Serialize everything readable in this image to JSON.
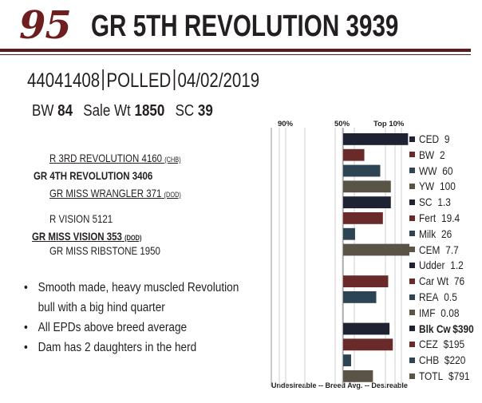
{
  "header": {
    "lot_number": "95",
    "bull_name": "GR  5TH REVOLUTION 3939"
  },
  "id_line": {
    "reg_number": "44041408",
    "polled": "POLLED",
    "birth_date": "04/02/2019"
  },
  "stats": {
    "bw_label": "BW",
    "bw_value": "84",
    "sale_wt_label": "Sale Wt",
    "sale_wt_value": "1850",
    "sc_label": "SC",
    "sc_value": "39"
  },
  "pedigree": {
    "sire": "GR 4TH REVOLUTION 3406",
    "sire_sire": "R 3RD REVOLUTION 4160",
    "sire_sire_tag": "(CHB)",
    "sire_dam": "GR MISS WRANGLER 371",
    "sire_dam_tag": "(DOD)",
    "dam": "GR MISS VISION 353",
    "dam_tag": "(DOD)",
    "dam_sire": "R VISION 5121",
    "dam_dam": "GR MISS RIBSTONE 1950"
  },
  "bullets": [
    "Smooth made, heavy muscled Revolution",
    "bull with a big hind quarter",
    "All EPDs above breed average",
    "Dam has 2 daughters in the herd"
  ],
  "chart_data": {
    "type": "bar",
    "orientation": "horizontal",
    "column_labels": [
      "90%",
      "50%",
      "Top 10%"
    ],
    "xlabel": "Undesireable -- Breed Avg. -- Desireable",
    "xlim": [
      0,
      100
    ],
    "grid": true,
    "categories": [
      "CED",
      "BW",
      "WW",
      "YW",
      "SC",
      "Fert",
      "Milk",
      "CEM",
      "Udder",
      "Car Wt",
      "REA",
      "IMF",
      "Blk Cw",
      "CEZ",
      "CHB",
      "TOTL"
    ],
    "printed_values": [
      "9",
      "2",
      "60",
      "100",
      "1.3",
      "19.4",
      "26",
      "7.7",
      "1.2",
      "76",
      "0.5",
      "0.08",
      "$390",
      "$195",
      "$220",
      "$791"
    ],
    "bold_rows": [
      12
    ],
    "percent_rank": [
      98,
      32,
      56,
      72,
      72,
      60,
      18,
      100,
      0,
      68,
      50,
      0,
      70,
      75,
      12,
      45
    ],
    "colors": [
      "#1e2233",
      "#6b2a2a",
      "#2c4454",
      "#5a5446",
      "#1e2233",
      "#6b2a2a",
      "#2c4454",
      "#5a5446",
      "#1e2233",
      "#6b2a2a",
      "#2c4454",
      "#5a5446",
      "#1e2233",
      "#6b2a2a",
      "#2c4454",
      "#5a5446"
    ]
  }
}
